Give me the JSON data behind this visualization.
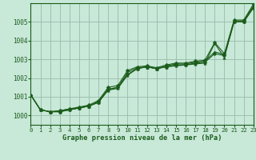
{
  "title": "Graphe pression niveau de la mer (hPa)",
  "bg_color": "#c8e8d8",
  "grid_color": "#99bbaa",
  "line_color": "#1a5c1a",
  "xlim": [
    0,
    23
  ],
  "ylim": [
    999.5,
    1006.0
  ],
  "yticks": [
    1000,
    1001,
    1002,
    1003,
    1004,
    1005
  ],
  "xticks": [
    0,
    1,
    2,
    3,
    4,
    5,
    6,
    7,
    8,
    9,
    10,
    11,
    12,
    13,
    14,
    15,
    16,
    17,
    18,
    19,
    20,
    21,
    22,
    23
  ],
  "series": [
    [
      1001.1,
      1000.3,
      1000.2,
      1000.2,
      1000.3,
      1000.4,
      1000.5,
      1000.7,
      1001.4,
      1001.5,
      1002.2,
      1002.5,
      1002.6,
      1002.5,
      1002.6,
      1002.7,
      1002.7,
      1002.8,
      1002.85,
      1003.3,
      1003.2,
      1005.0,
      1005.0,
      1005.8
    ],
    [
      1001.1,
      1000.3,
      1000.2,
      1000.25,
      1000.35,
      1000.4,
      1000.5,
      1000.75,
      1001.4,
      1001.5,
      1002.3,
      1002.55,
      1002.6,
      1002.5,
      1002.65,
      1002.75,
      1002.75,
      1002.85,
      1002.9,
      1003.4,
      1003.25,
      1005.05,
      1005.05,
      1005.85
    ],
    [
      1001.1,
      1000.3,
      1000.2,
      1000.25,
      1000.35,
      1000.45,
      1000.55,
      1000.8,
      1001.5,
      1001.6,
      1002.4,
      1002.6,
      1002.65,
      1002.55,
      1002.7,
      1002.8,
      1002.8,
      1002.9,
      1002.95,
      1003.9,
      1003.3,
      1005.1,
      1005.1,
      1005.95
    ],
    [
      1001.1,
      1000.3,
      1000.2,
      1000.2,
      1000.3,
      1000.4,
      1000.5,
      1000.7,
      1001.35,
      1001.45,
      1002.15,
      1002.5,
      1002.6,
      1002.5,
      1002.6,
      1002.65,
      1002.7,
      1002.75,
      1002.8,
      1003.85,
      1003.1,
      1005.0,
      1005.0,
      1005.75
    ]
  ],
  "marker_size": 2.5
}
